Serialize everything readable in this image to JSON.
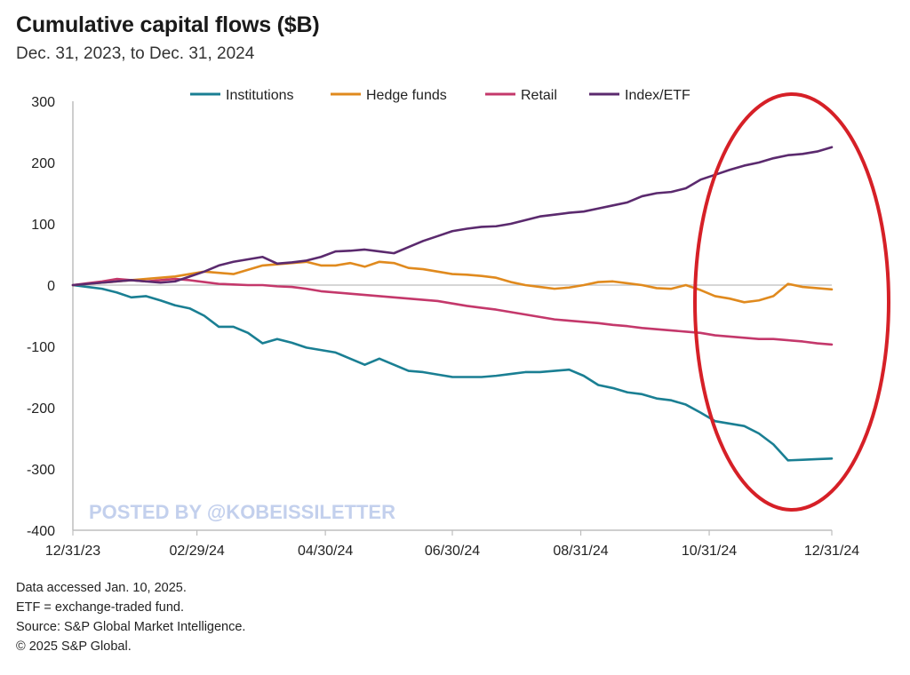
{
  "title": "Cumulative capital flows ($B)",
  "subtitle": "Dec. 31, 2023, to Dec. 31, 2024",
  "watermark": "POSTED BY @KOBEISSILETTER",
  "notes": [
    "Data accessed Jan. 10, 2025.",
    "ETF = exchange-traded fund.",
    "Source: S&P Global Market Intelligence.",
    "© 2025 S&P Global."
  ],
  "annotation": {
    "type": "ellipse",
    "color": "#d62027",
    "highlights": "10/31/24 to 12/31/24"
  },
  "chart_data": {
    "type": "line",
    "title": "Cumulative capital flows ($B)",
    "subtitle": "Dec. 31, 2023, to Dec. 31, 2024",
    "xlabel": "",
    "ylabel": "",
    "ylim": [
      -400,
      300
    ],
    "yticks": [
      300,
      200,
      100,
      0,
      -100,
      -200,
      -300,
      -400
    ],
    "xlim": [
      0,
      52
    ],
    "xticks": [
      {
        "x": 0,
        "label": "12/31/23"
      },
      {
        "x": 8.5,
        "label": "02/29/24"
      },
      {
        "x": 17.3,
        "label": "04/30/24"
      },
      {
        "x": 26,
        "label": "06/30/24"
      },
      {
        "x": 34.8,
        "label": "08/31/24"
      },
      {
        "x": 43.6,
        "label": "10/31/24"
      },
      {
        "x": 52,
        "label": "12/31/24"
      }
    ],
    "legend_position": "top",
    "series": [
      {
        "name": "Institutions",
        "color": "#1a7f93",
        "values": [
          0,
          -3,
          -6,
          -12,
          -20,
          -18,
          -25,
          -33,
          -38,
          -50,
          -68,
          -68,
          -78,
          -95,
          -88,
          -94,
          -102,
          -106,
          -110,
          -120,
          -130,
          -120,
          -130,
          -140,
          -142,
          -146,
          -150,
          -150,
          -150,
          -148,
          -145,
          -142,
          -142,
          -140,
          -138,
          -148,
          -163,
          -168,
          -175,
          -178,
          -185,
          -188,
          -195,
          -208,
          -222,
          -226,
          -230,
          -242,
          -260,
          -286,
          -285,
          -284,
          -283
        ]
      },
      {
        "name": "Hedge funds",
        "color": "#e08a1e",
        "values": [
          0,
          2,
          4,
          6,
          8,
          10,
          12,
          14,
          18,
          22,
          20,
          18,
          25,
          32,
          34,
          36,
          38,
          32,
          32,
          36,
          30,
          38,
          36,
          28,
          26,
          22,
          18,
          17,
          15,
          12,
          5,
          0,
          -3,
          -6,
          -4,
          0,
          5,
          6,
          3,
          0,
          -5,
          -6,
          0,
          -8,
          -18,
          -22,
          -28,
          -25,
          -18,
          2,
          -3,
          -5,
          -7
        ]
      },
      {
        "name": "Retail",
        "color": "#c4386b",
        "values": [
          0,
          3,
          6,
          10,
          8,
          6,
          8,
          10,
          8,
          5,
          2,
          1,
          0,
          0,
          -2,
          -3,
          -6,
          -10,
          -12,
          -14,
          -16,
          -18,
          -20,
          -22,
          -24,
          -26,
          -30,
          -34,
          -37,
          -40,
          -44,
          -48,
          -52,
          -56,
          -58,
          -60,
          -62,
          -65,
          -67,
          -70,
          -72,
          -74,
          -76,
          -78,
          -82,
          -84,
          -86,
          -88,
          -88,
          -90,
          -92,
          -95,
          -97
        ]
      },
      {
        "name": "Index/ETF",
        "color": "#5b2a6e",
        "values": [
          0,
          2,
          4,
          6,
          8,
          6,
          4,
          6,
          14,
          22,
          32,
          38,
          42,
          46,
          35,
          37,
          40,
          46,
          55,
          56,
          58,
          55,
          52,
          62,
          72,
          80,
          88,
          92,
          95,
          96,
          100,
          106,
          112,
          115,
          118,
          120,
          125,
          130,
          135,
          145,
          150,
          152,
          158,
          172,
          180,
          188,
          195,
          200,
          207,
          212,
          214,
          218,
          225
        ]
      }
    ]
  }
}
